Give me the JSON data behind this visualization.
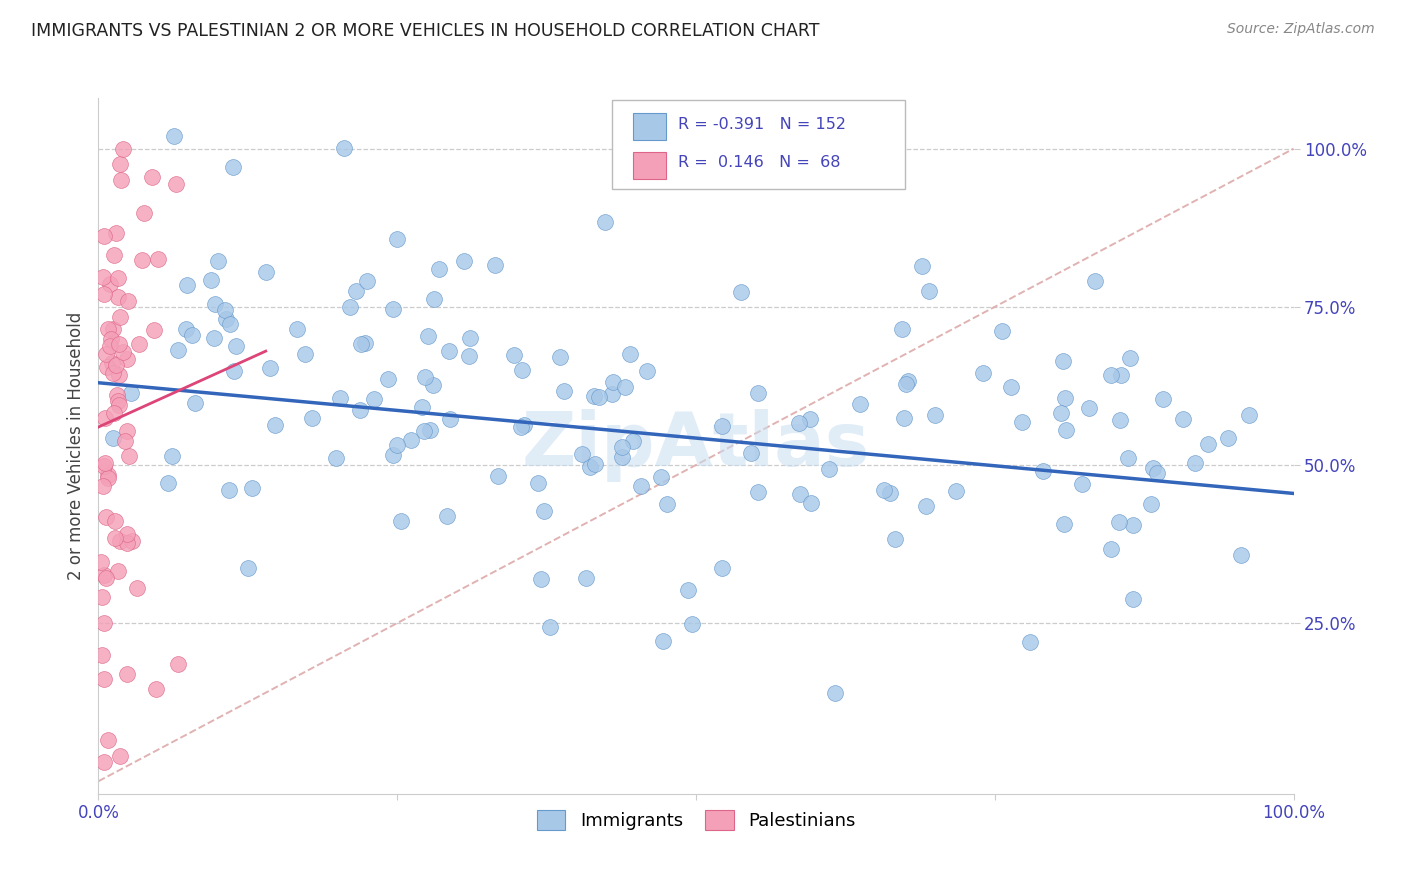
{
  "title": "IMMIGRANTS VS PALESTINIAN 2 OR MORE VEHICLES IN HOUSEHOLD CORRELATION CHART",
  "source": "Source: ZipAtlas.com",
  "ylabel": "2 or more Vehicles in Household",
  "legend_blue_label": "Immigrants",
  "legend_pink_label": "Palestinians",
  "R_blue": -0.391,
  "N_blue": 152,
  "R_pink": 0.146,
  "N_pink": 68,
  "blue_color": "#a8c8e8",
  "pink_color": "#f4a0b8",
  "blue_edge_color": "#6699cc",
  "pink_edge_color": "#dd6688",
  "blue_line_color": "#3366bb",
  "pink_line_color": "#dd4477",
  "diag_color": "#ddaaaa",
  "grid_color": "#cccccc",
  "axis_tick_color": "#4444bb",
  "title_color": "#222222",
  "source_color": "#888888",
  "watermark_color": "#c8ddf0",
  "xlim": [
    0.0,
    1.0
  ],
  "ylim": [
    -0.02,
    1.08
  ],
  "blue_line_y0": 0.63,
  "blue_line_y1": 0.455,
  "pink_line_x0": 0.0,
  "pink_line_x1": 0.14,
  "pink_line_y0": 0.56,
  "pink_line_y1": 0.68,
  "seed": 99
}
